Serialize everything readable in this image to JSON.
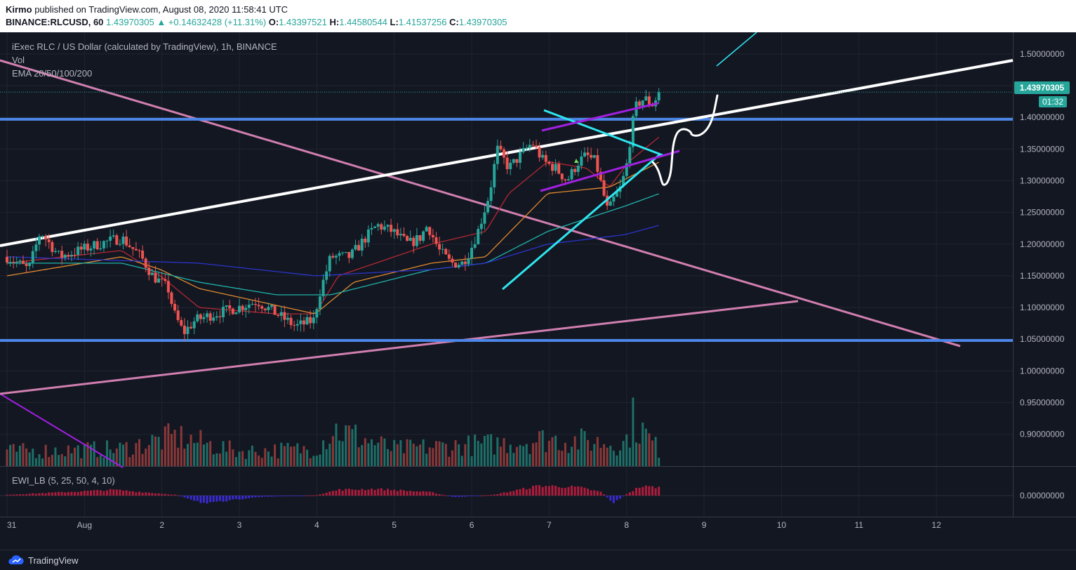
{
  "header": {
    "author": "Kirmo",
    "published_text": "published on TradingView.com, August 08, 2020 11:58:41 UTC",
    "symbol": "BINANCE:RLCUSD, 60",
    "last_price": "1.43970305",
    "change": "+0.14632428 (+11.31%)",
    "o_label": "O:",
    "o_value": "1.43397521",
    "h_label": "H:",
    "h_value": "1.44580544",
    "l_label": "L:",
    "l_value": "1.41537256",
    "c_label": "C:",
    "c_value": "1.43970305"
  },
  "legend": {
    "title": "iExec RLC / US Dollar (calculated by TradingView), 1h, BINANCE",
    "vol": "Vol",
    "ema": "EMA 20/50/100/200",
    "oscillator": "EWI_LB (5, 25, 50, 4, 10)"
  },
  "badges": {
    "price": "1.43970305",
    "timer": "01:32"
  },
  "footer": {
    "brand": "TradingView"
  },
  "colors": {
    "background": "#131722",
    "up": "#26a69a",
    "down": "#ef5350",
    "grid": "#1f2430",
    "axis_text": "#b2b5be",
    "ema20": "#b22833",
    "ema50": "#e08a2e",
    "ema100": "#1fb3a9",
    "ema200": "#2a34c8",
    "support_lines": "#4c86e8",
    "trend_white": "#ffffff",
    "trend_pink": "#d17fb0",
    "cyan": "#2ee6f0",
    "purple": "#a020e0"
  },
  "chart_data": [
    {
      "type": "candlestick",
      "title": "iExec RLC / US Dollar (calculated by TradingView), 1h, BINANCE",
      "x_axis_ticks": [
        "31",
        "Aug",
        "2",
        "3",
        "4",
        "5",
        "6",
        "7",
        "8",
        "9",
        "10",
        "11",
        "12"
      ],
      "x_range_days": [
        -0.98,
        11.98
      ],
      "y_axis_ticks": [
        "1.50000000",
        "1.45000000",
        "1.40000000",
        "1.35000000",
        "1.30000000",
        "1.25000000",
        "1.20000000",
        "1.15000000",
        "1.10000000",
        "1.05000000",
        "1.00000000",
        "0.95000000",
        "0.90000000"
      ],
      "ylim": [
        0.87,
        1.51
      ],
      "grid": true,
      "last_close": 1.43970305,
      "anchors": [
        [
          -0.98,
          1.18
        ],
        [
          -0.7,
          1.16
        ],
        [
          -0.55,
          1.22
        ],
        [
          -0.3,
          1.18
        ],
        [
          0.2,
          1.2
        ],
        [
          0.5,
          1.21
        ],
        [
          0.75,
          1.18
        ],
        [
          0.9,
          1.15
        ],
        [
          1.1,
          1.13
        ],
        [
          1.18,
          1.09
        ],
        [
          1.3,
          1.06
        ],
        [
          1.45,
          1.08
        ],
        [
          1.7,
          1.09
        ],
        [
          2.0,
          1.1
        ],
        [
          2.25,
          1.11
        ],
        [
          2.5,
          1.09
        ],
        [
          2.75,
          1.07
        ],
        [
          2.98,
          1.08
        ],
        [
          3.05,
          1.12
        ],
        [
          3.2,
          1.18
        ],
        [
          3.45,
          1.18
        ],
        [
          3.65,
          1.21
        ],
        [
          3.8,
          1.23
        ],
        [
          4.0,
          1.22
        ],
        [
          4.2,
          1.2
        ],
        [
          4.35,
          1.21
        ],
        [
          4.45,
          1.23
        ],
        [
          4.6,
          1.19
        ],
        [
          4.75,
          1.17
        ],
        [
          4.9,
          1.17
        ],
        [
          5.0,
          1.19
        ],
        [
          5.1,
          1.22
        ],
        [
          5.25,
          1.28
        ],
        [
          5.35,
          1.35
        ],
        [
          5.5,
          1.32
        ],
        [
          5.65,
          1.34
        ],
        [
          5.8,
          1.36
        ],
        [
          5.95,
          1.33
        ],
        [
          6.1,
          1.32
        ],
        [
          6.25,
          1.3
        ],
        [
          6.4,
          1.33
        ],
        [
          6.5,
          1.34
        ],
        [
          6.62,
          1.33
        ],
        [
          6.7,
          1.29
        ],
        [
          6.78,
          1.25
        ],
        [
          6.85,
          1.27
        ],
        [
          6.95,
          1.29
        ],
        [
          7.03,
          1.33
        ],
        [
          7.08,
          1.38
        ],
        [
          7.15,
          1.42
        ],
        [
          7.25,
          1.43
        ],
        [
          7.35,
          1.42
        ],
        [
          7.45,
          1.44
        ]
      ],
      "ema_series": [
        {
          "name": "EMA 20",
          "anchors": [
            [
              -0.98,
              1.17
            ],
            [
              0.5,
              1.19
            ],
            [
              1.0,
              1.15
            ],
            [
              1.5,
              1.1
            ],
            [
              2.5,
              1.09
            ],
            [
              3.0,
              1.09
            ],
            [
              3.3,
              1.15
            ],
            [
              4.5,
              1.2
            ],
            [
              5.2,
              1.22
            ],
            [
              5.5,
              1.28
            ],
            [
              6.0,
              1.33
            ],
            [
              6.5,
              1.32
            ],
            [
              6.8,
              1.29
            ],
            [
              7.05,
              1.33
            ],
            [
              7.45,
              1.37
            ]
          ]
        },
        {
          "name": "EMA 50",
          "anchors": [
            [
              -0.98,
              1.15
            ],
            [
              0.5,
              1.18
            ],
            [
              1.0,
              1.16
            ],
            [
              1.5,
              1.13
            ],
            [
              3.0,
              1.09
            ],
            [
              3.5,
              1.14
            ],
            [
              4.5,
              1.17
            ],
            [
              5.2,
              1.18
            ],
            [
              6.0,
              1.28
            ],
            [
              6.8,
              1.29
            ],
            [
              7.45,
              1.33
            ]
          ]
        },
        {
          "name": "EMA 100",
          "anchors": [
            [
              -0.98,
              1.17
            ],
            [
              0.5,
              1.17
            ],
            [
              1.5,
              1.14
            ],
            [
              2.5,
              1.12
            ],
            [
              3.2,
              1.12
            ],
            [
              4.5,
              1.16
            ],
            [
              5.2,
              1.17
            ],
            [
              6.0,
              1.22
            ],
            [
              7.0,
              1.26
            ],
            [
              7.45,
              1.28
            ]
          ]
        },
        {
          "name": "EMA 200",
          "anchors": [
            [
              -0.98,
              1.18
            ],
            [
              1.5,
              1.17
            ],
            [
              3.0,
              1.15
            ],
            [
              4.5,
              1.16
            ],
            [
              5.2,
              1.17
            ],
            [
              6.0,
              1.2
            ],
            [
              7.0,
              1.215
            ],
            [
              7.45,
              1.23
            ]
          ]
        }
      ]
    },
    {
      "type": "bar",
      "title": "Vol",
      "note": "relative hourly volume (0-1)",
      "envelope": [
        [
          -0.98,
          0.3
        ],
        [
          0.5,
          0.35
        ],
        [
          1.2,
          0.6
        ],
        [
          2.0,
          0.3
        ],
        [
          3.0,
          0.35
        ],
        [
          3.25,
          0.75
        ],
        [
          4.0,
          0.35
        ],
        [
          5.3,
          0.45
        ],
        [
          6.0,
          0.55
        ],
        [
          7.0,
          0.45
        ],
        [
          7.1,
          0.95
        ],
        [
          7.45,
          0.3
        ]
      ]
    },
    {
      "type": "area",
      "title": "EWI_LB (5, 25, 50, 4, 10)",
      "y_ticks": [
        "0.00000000"
      ],
      "ylim": [
        -1,
        1
      ],
      "envelope": [
        [
          -0.98,
          0.05
        ],
        [
          0.4,
          0.35
        ],
        [
          1.2,
          0.05
        ],
        [
          1.6,
          -0.5
        ],
        [
          2.2,
          -0.1
        ],
        [
          3.0,
          0.02
        ],
        [
          3.3,
          0.35
        ],
        [
          3.8,
          0.4
        ],
        [
          4.5,
          0.2
        ],
        [
          4.8,
          -0.1
        ],
        [
          5.3,
          0.05
        ],
        [
          5.9,
          0.6
        ],
        [
          6.4,
          0.5
        ],
        [
          6.7,
          0.2
        ],
        [
          6.85,
          -0.45
        ],
        [
          7.0,
          0.05
        ],
        [
          7.2,
          0.55
        ],
        [
          7.45,
          0.5
        ]
      ]
    }
  ],
  "annotations": [
    {
      "name": "support-1.40",
      "price": 1.397
    },
    {
      "name": "support-1.05",
      "price": 1.048
    }
  ]
}
